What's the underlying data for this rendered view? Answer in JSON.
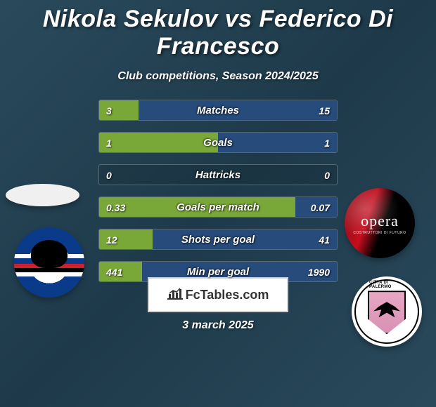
{
  "title": "Nikola Sekulov vs Federico Di Francesco",
  "subtitle": "Club competitions, Season 2024/2025",
  "date": "3 march 2025",
  "fctables_label": "FcTables.com",
  "colors": {
    "left_bar": "#7aa838",
    "right_bar": "#274b7a",
    "background_start": "#2a4a5c",
    "background_end": "#1e3a4a",
    "text": "#ffffff"
  },
  "badges": {
    "left_top": "oval-placeholder",
    "left_bottom": "sampdoria",
    "right_top": "opera",
    "right_bottom": "palermo",
    "opera_text": "opera",
    "opera_subtext": "COSTRUTTORI DI FUTURO",
    "palermo_text": "CITTA DI PALERMO"
  },
  "rows": [
    {
      "label": "Matches",
      "left": "3",
      "right": "15",
      "left_pct": 16.7,
      "right_pct": 83.3
    },
    {
      "label": "Goals",
      "left": "1",
      "right": "1",
      "left_pct": 50.0,
      "right_pct": 50.0
    },
    {
      "label": "Hattricks",
      "left": "0",
      "right": "0",
      "left_pct": 0.0,
      "right_pct": 0.0
    },
    {
      "label": "Goals per match",
      "left": "0.33",
      "right": "0.07",
      "left_pct": 82.5,
      "right_pct": 17.5
    },
    {
      "label": "Shots per goal",
      "left": "12",
      "right": "41",
      "left_pct": 22.6,
      "right_pct": 77.4
    },
    {
      "label": "Min per goal",
      "left": "441",
      "right": "1990",
      "left_pct": 18.1,
      "right_pct": 81.9
    }
  ]
}
